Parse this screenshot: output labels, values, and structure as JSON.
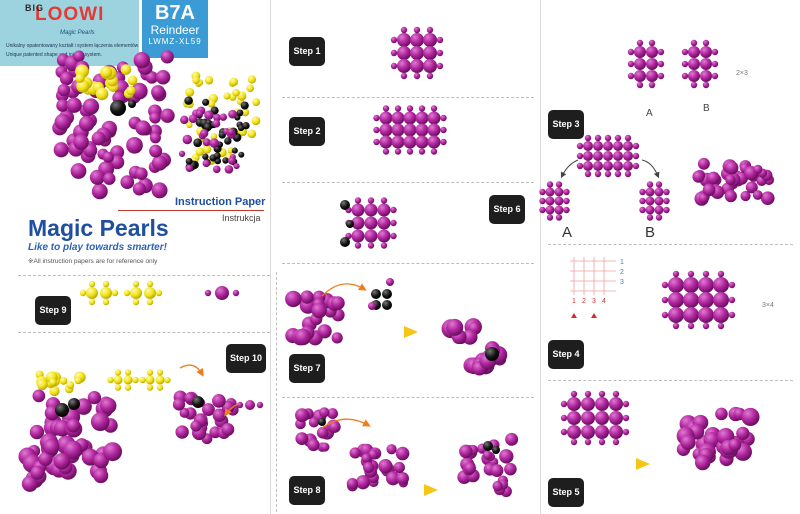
{
  "brand": {
    "big": "BIG",
    "logo": "LOOWI",
    "sub": "Magic Pearls",
    "tagline_pl": "Unikalny opatentowany kształt i system łączenia elementów",
    "tagline_en": "Unique patented shape and joining system."
  },
  "product": {
    "code": "B7A",
    "name": "Reindeer",
    "model": "LWMZ-XL59"
  },
  "cover": {
    "instruction_paper": "Instruction Paper",
    "instrukcja": "Instrukcja",
    "title": "Magic Pearls",
    "slogan": "Like to play towards smarter!",
    "note": "※All instruction papers are for reference only"
  },
  "steps": {
    "s1": "Step 1",
    "s2": "Step 2",
    "s3": "Step 3",
    "s4": "Step 4",
    "s5": "Step 5",
    "s6": "Step 6",
    "s7": "Step 7",
    "s8": "Step 8",
    "s9": "Step 9",
    "s10": "Step 10"
  },
  "labels": {
    "a": "A",
    "b": "B",
    "a_big": "A",
    "b_big": "B",
    "dim_2x3": "2×3",
    "dim_3x4": "3×4",
    "col1": "1",
    "col2": "2",
    "col3": "3",
    "col4": "4",
    "row1": "1",
    "row2": "2",
    "row3": "3"
  },
  "colors": {
    "magenta": "#b0269e",
    "magenta_dark": "#7e1471",
    "yellow": "#f2e216",
    "black": "#161616",
    "arrow_orange": "#ef7d1a",
    "arrow_yellow": "#f5c518"
  }
}
